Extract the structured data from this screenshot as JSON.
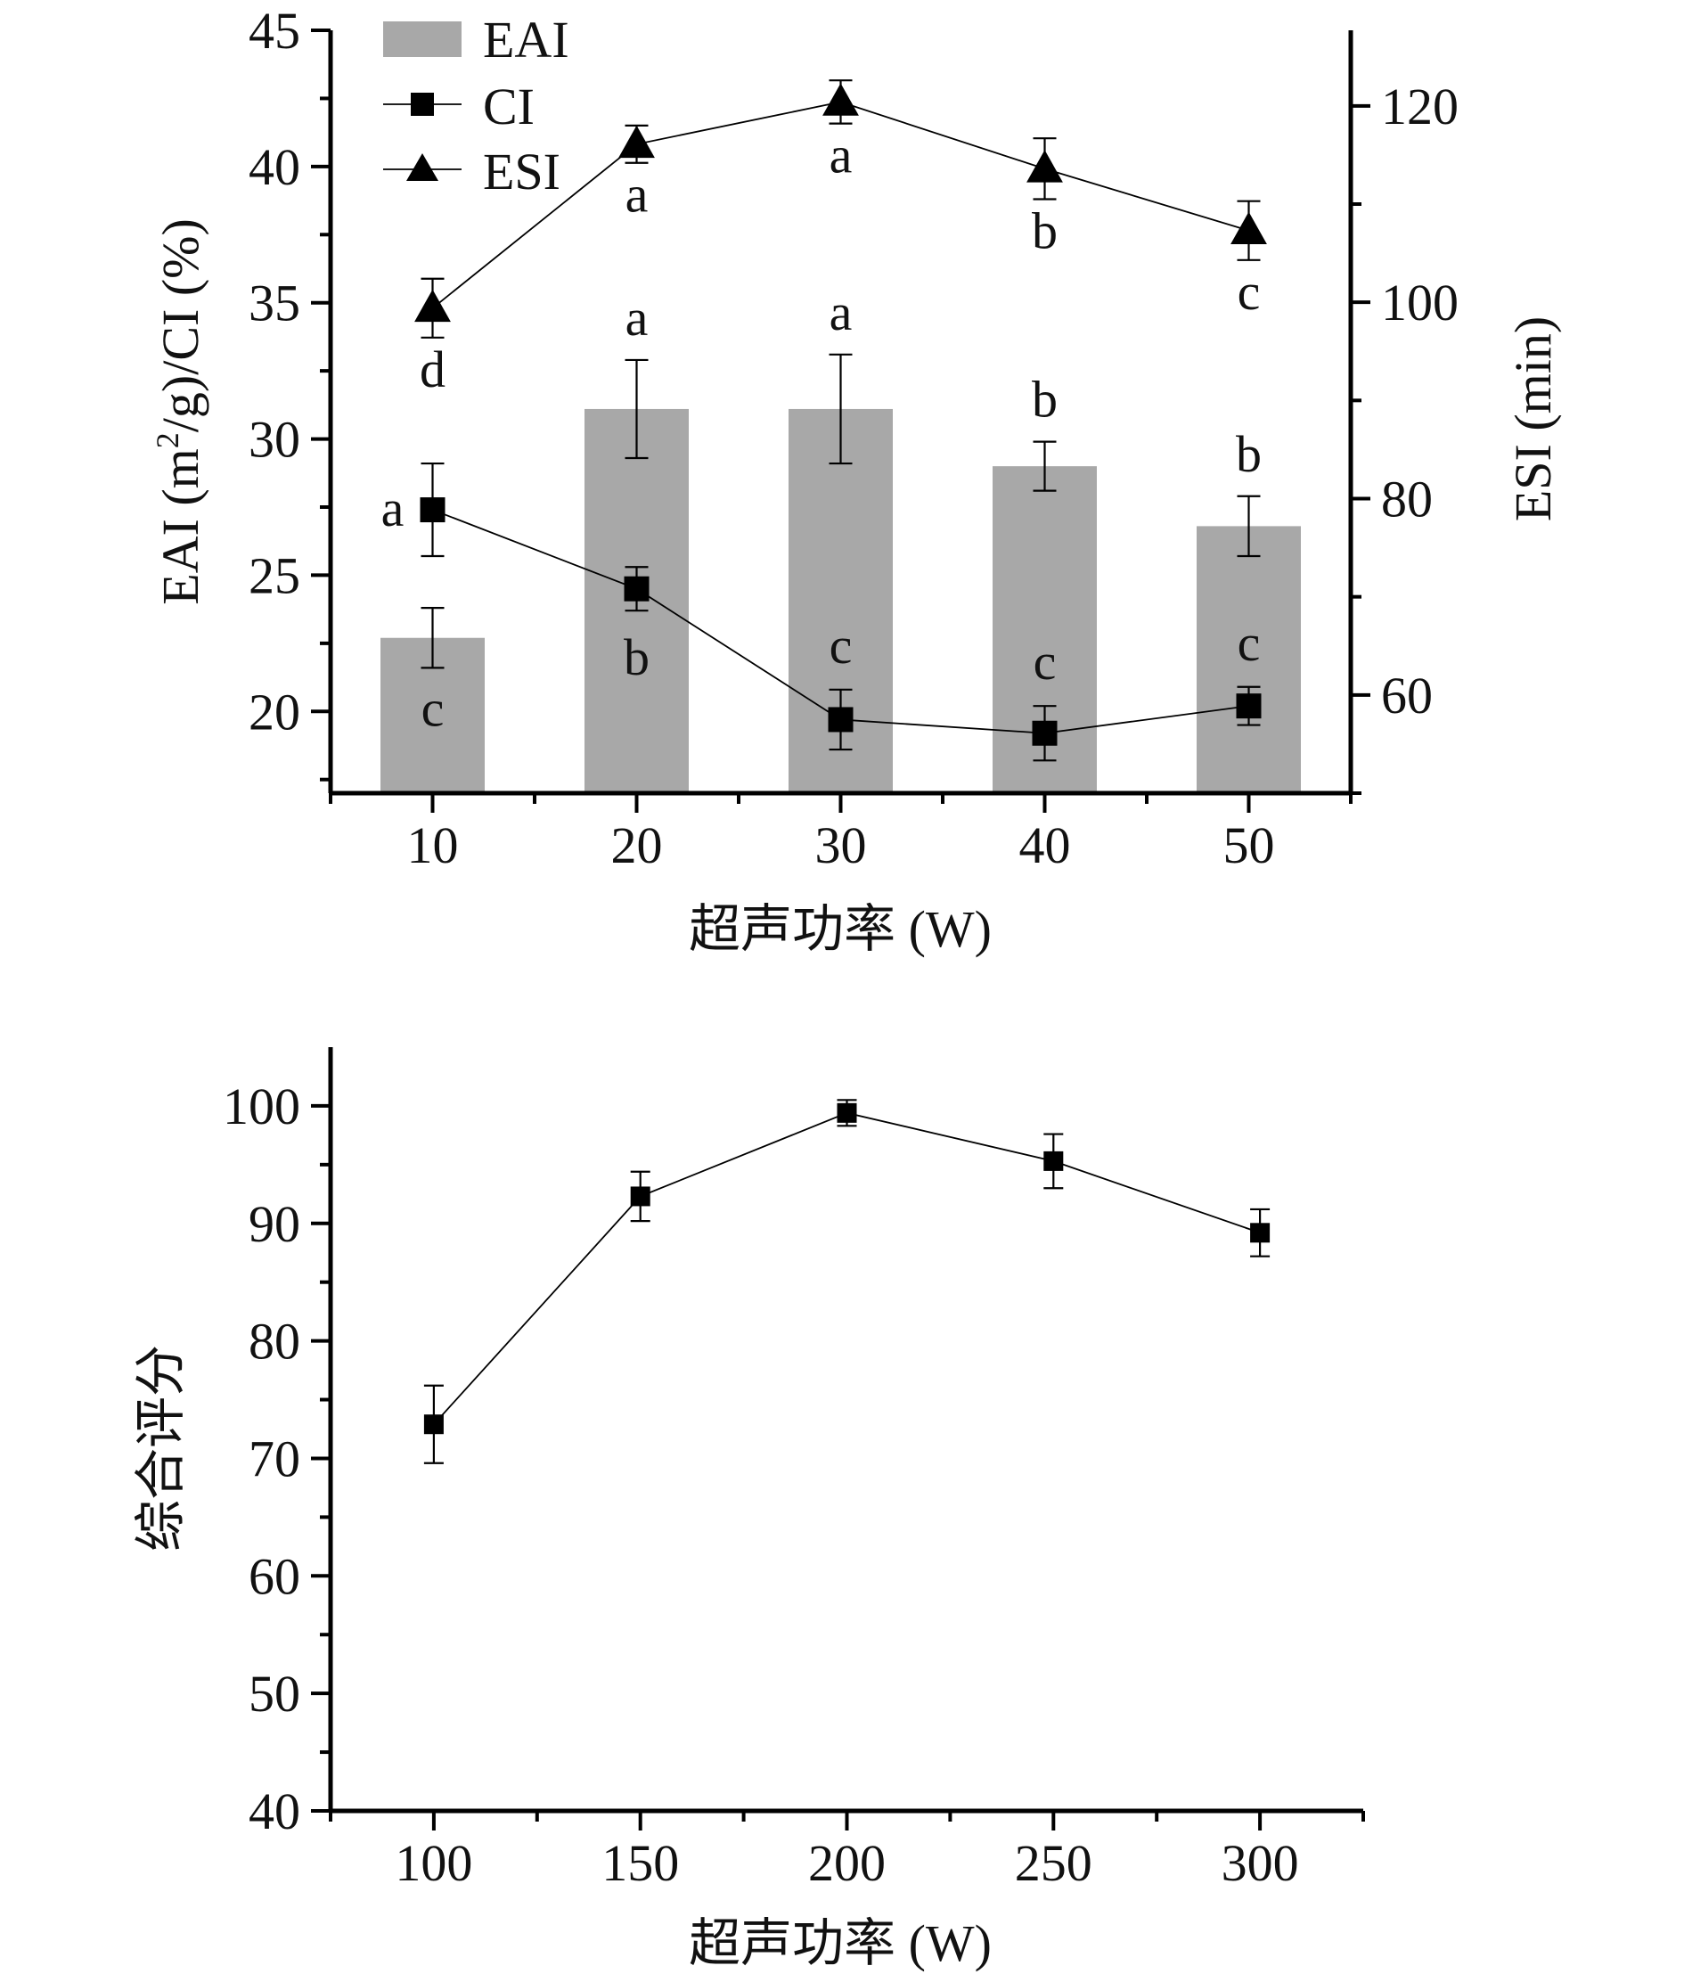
{
  "chart_data": [
    {
      "type": "bar",
      "title": "",
      "xlabel": "超声功率 (W)",
      "ylabel": "EAI (m²/g)/CI (%)",
      "ylabel_parts": {
        "pre": "EAI (m",
        "sup": "2",
        "post": "/g)/CI (%)"
      },
      "y2label": "ESI (min)",
      "categories": [
        10,
        20,
        30,
        40,
        50
      ],
      "x_ticks": [
        "10",
        "20",
        "30",
        "40",
        "50"
      ],
      "xlim": [
        5,
        55
      ],
      "ylim": [
        17,
        45
      ],
      "y_ticks": [
        20,
        25,
        30,
        35,
        40,
        45
      ],
      "y_minor_ticks": [
        17.5,
        22.5,
        27.5,
        32.5,
        37.5,
        42.5
      ],
      "y2lim": [
        50,
        127.7
      ],
      "y2_ticks": [
        60,
        80,
        100,
        120
      ],
      "y2_minor_ticks": [
        50,
        70,
        90,
        110
      ],
      "grid": false,
      "legend": {
        "position": "top-left",
        "entries": [
          {
            "label": "EAI",
            "symbol": "bar"
          },
          {
            "label": "CI",
            "symbol": "square-line"
          },
          {
            "label": "ESI",
            "symbol": "triangle-line"
          }
        ]
      },
      "colors": {
        "bar": "#a8a8a8",
        "line": "#000000"
      },
      "series": [
        {
          "name": "EAI",
          "type": "bar",
          "axis": "left",
          "values": [
            22.7,
            31.1,
            31.1,
            29.0,
            26.8
          ],
          "errors": [
            1.1,
            1.8,
            2.0,
            0.9,
            1.1
          ],
          "labels": [
            "c",
            "a",
            "a",
            "b",
            "b"
          ]
        },
        {
          "name": "CI",
          "type": "line",
          "marker": "square",
          "axis": "left",
          "values": [
            27.4,
            24.5,
            19.7,
            19.2,
            20.2
          ],
          "errors": [
            1.7,
            0.8,
            1.1,
            1.0,
            0.7
          ],
          "labels": [
            "a",
            "b",
            "c",
            "c",
            "c"
          ]
        },
        {
          "name": "ESI",
          "type": "line",
          "marker": "triangle",
          "axis": "right",
          "values": [
            99.4,
            116.1,
            120.4,
            113.6,
            107.3
          ],
          "errors": [
            3.0,
            1.9,
            2.2,
            3.1,
            3.0
          ],
          "labels": [
            "d",
            "a",
            "a",
            "b",
            "c"
          ]
        }
      ]
    },
    {
      "type": "line",
      "title": "",
      "xlabel": "超声功率 (W)",
      "ylabel": "综合评分",
      "x": [
        100,
        150,
        200,
        250,
        300
      ],
      "x_ticks": [
        "100",
        "150",
        "200",
        "250",
        "300"
      ],
      "x_minor_ticks": [
        75,
        125,
        175,
        225,
        275,
        325
      ],
      "xlim": [
        75,
        325
      ],
      "ylim": [
        40,
        105
      ],
      "y_ticks": [
        40,
        50,
        60,
        70,
        80,
        90,
        100
      ],
      "y_minor_ticks": [
        45,
        55,
        65,
        75,
        85,
        95
      ],
      "grid": false,
      "series": [
        {
          "name": "综合评分",
          "marker": "square",
          "values": [
            72.9,
            92.3,
            99.4,
            95.3,
            89.2
          ],
          "errors": [
            3.3,
            2.1,
            1.1,
            2.3,
            2.0
          ]
        }
      ]
    }
  ]
}
